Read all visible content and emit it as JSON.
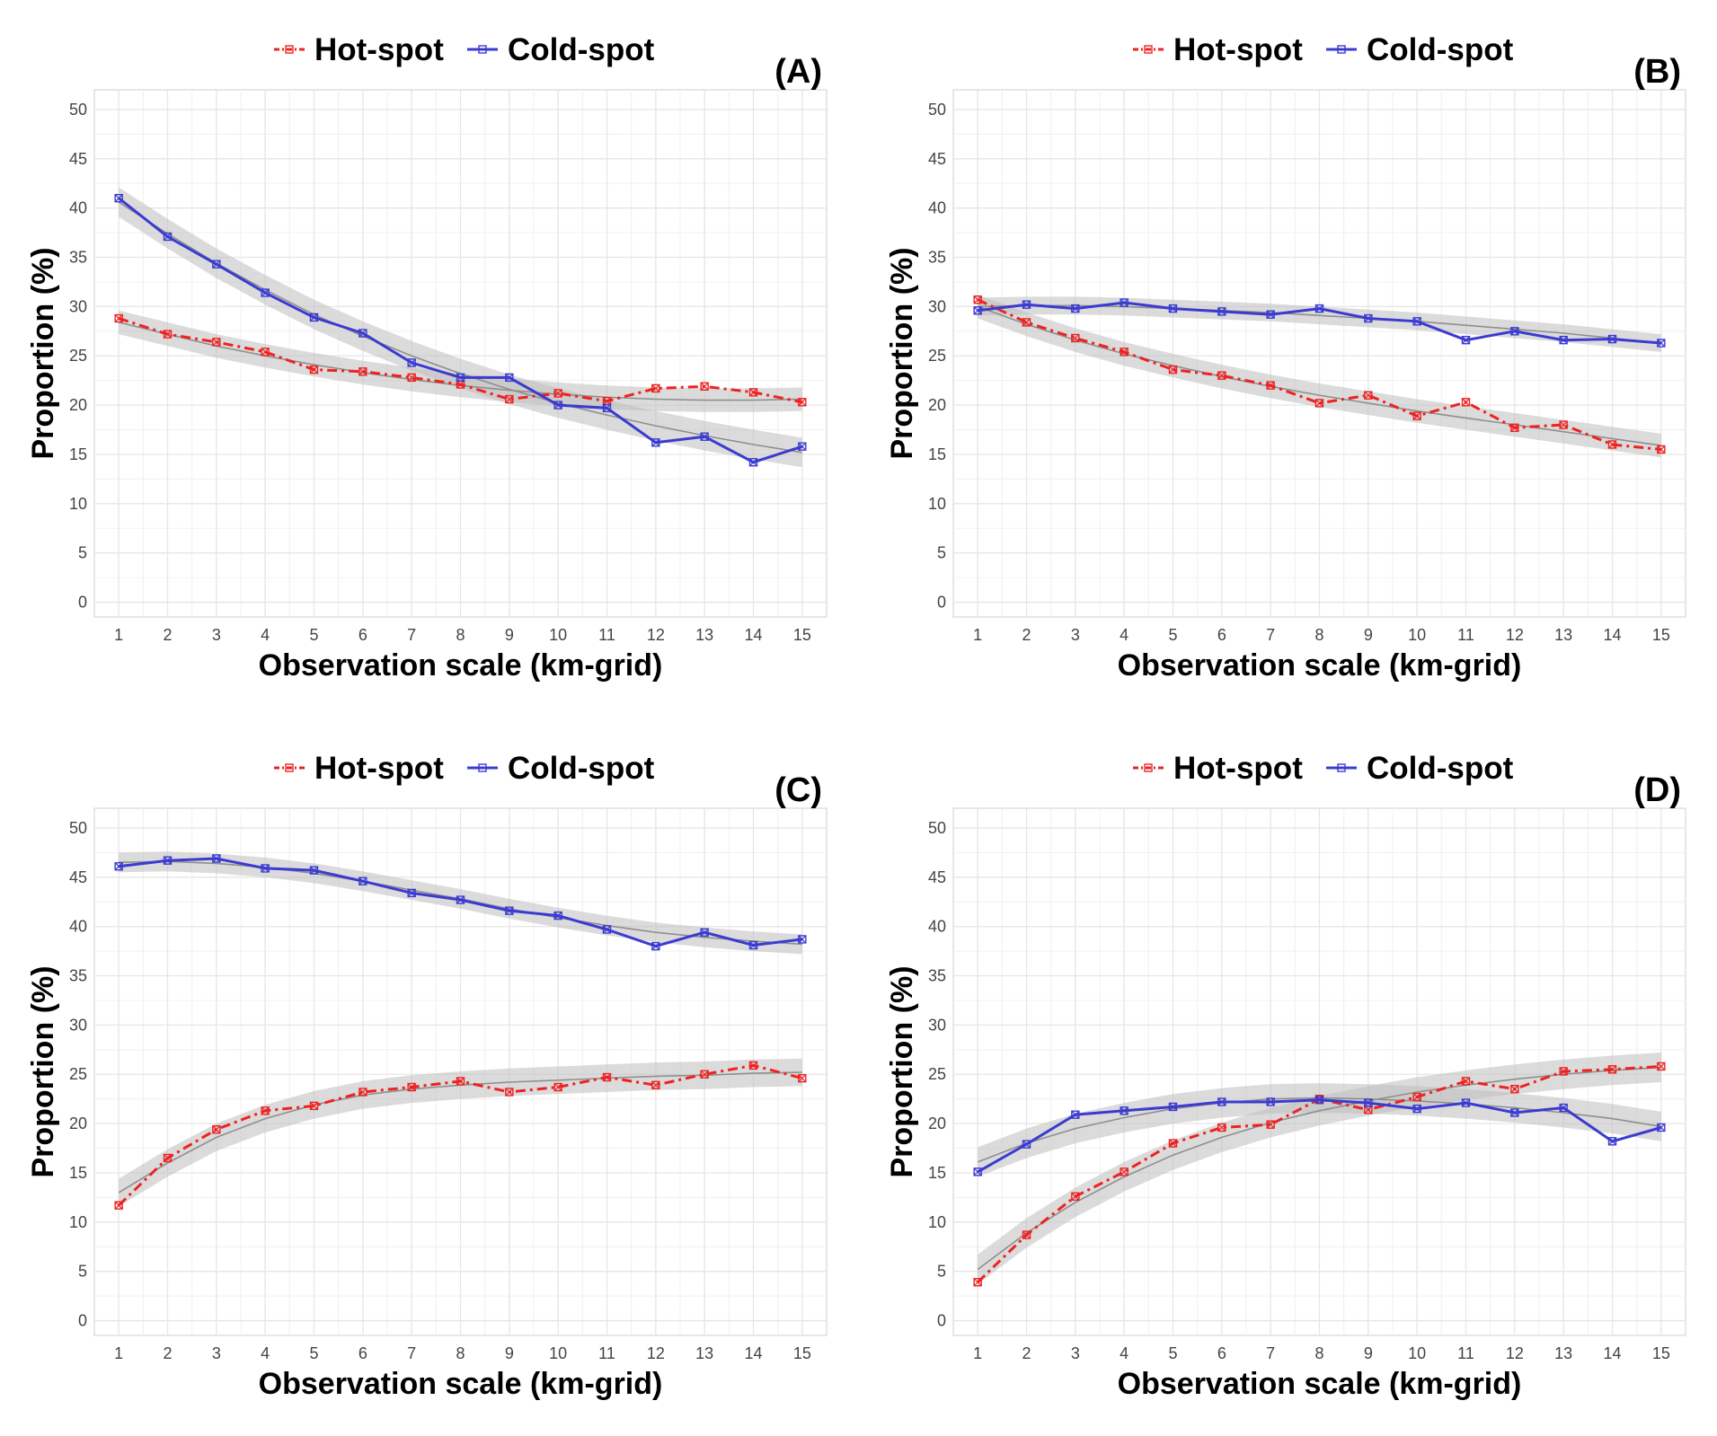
{
  "figure": {
    "legend": {
      "hot_label": "Hot-spot",
      "cold_label": "Cold-spot"
    },
    "colors": {
      "hot": "#ee2222",
      "cold": "#3b3bd1",
      "band": "#bdbdbd",
      "grid": "#e6e6e6",
      "border": "#cfcfcf"
    }
  },
  "chart_data": [
    {
      "type": "line",
      "label": "(A)",
      "xlabel": "Observation scale (km-grid)",
      "ylabel": "Proportion (%)",
      "x": [
        1,
        2,
        3,
        4,
        5,
        6,
        7,
        8,
        9,
        10,
        11,
        12,
        13,
        14,
        15
      ],
      "xlim": [
        0.5,
        15.5
      ],
      "ylim": [
        -1.5,
        52
      ],
      "yticks": [
        0,
        5,
        10,
        15,
        20,
        25,
        30,
        35,
        40,
        45,
        50
      ],
      "legend_position": "top",
      "series": [
        {
          "name": "Hot-spot",
          "style": "dash-dot",
          "values": [
            28.8,
            27.2,
            26.4,
            25.4,
            23.6,
            23.4,
            22.8,
            22.1,
            20.6,
            21.2,
            20.4,
            21.7,
            21.9,
            21.3,
            20.3
          ],
          "fit": [
            28.4,
            27.2,
            26.0,
            25.0,
            24.1,
            23.3,
            22.6,
            22.0,
            21.5,
            21.1,
            20.8,
            20.6,
            20.5,
            20.5,
            20.6
          ],
          "band": 1.2
        },
        {
          "name": "Cold-spot",
          "style": "solid",
          "values": [
            41.0,
            37.1,
            34.3,
            31.4,
            28.9,
            27.3,
            24.3,
            22.8,
            22.8,
            20.0,
            19.7,
            16.2,
            16.8,
            14.2,
            15.8
          ],
          "fit": [
            40.6,
            37.4,
            34.4,
            31.7,
            29.2,
            27.0,
            25.0,
            23.2,
            21.6,
            20.2,
            19.0,
            17.9,
            16.9,
            16.0,
            15.2
          ],
          "band": 1.5
        }
      ]
    },
    {
      "type": "line",
      "label": "(B)",
      "xlabel": "Observation scale (km-grid)",
      "ylabel": "Proportion (%)",
      "x": [
        1,
        2,
        3,
        4,
        5,
        6,
        7,
        8,
        9,
        10,
        11,
        12,
        13,
        14,
        15
      ],
      "xlim": [
        0.5,
        15.5
      ],
      "ylim": [
        -1.5,
        52
      ],
      "yticks": [
        0,
        5,
        10,
        15,
        20,
        25,
        30,
        35,
        40,
        45,
        50
      ],
      "legend_position": "top",
      "series": [
        {
          "name": "Hot-spot",
          "style": "dash-dot",
          "values": [
            30.7,
            28.4,
            26.8,
            25.4,
            23.6,
            23.0,
            22.0,
            20.2,
            21.0,
            18.9,
            20.3,
            17.7,
            18.0,
            16.0,
            15.5
          ],
          "fit": [
            30.0,
            28.2,
            26.6,
            25.2,
            24.0,
            22.9,
            21.9,
            21.0,
            20.2,
            19.4,
            18.7,
            18.0,
            17.3,
            16.6,
            15.9
          ],
          "band": 1.2
        },
        {
          "name": "Cold-spot",
          "style": "solid",
          "values": [
            29.6,
            30.2,
            29.8,
            30.4,
            29.8,
            29.5,
            29.2,
            29.8,
            28.8,
            28.5,
            26.6,
            27.5,
            26.6,
            26.7,
            26.3
          ],
          "fit": [
            30.0,
            30.1,
            30.1,
            30.0,
            29.8,
            29.6,
            29.4,
            29.1,
            28.8,
            28.5,
            28.1,
            27.7,
            27.3,
            26.8,
            26.3
          ],
          "band": 0.9
        }
      ]
    },
    {
      "type": "line",
      "label": "(C)",
      "xlabel": "Observation scale (km-grid)",
      "ylabel": "Proportion (%)",
      "x": [
        1,
        2,
        3,
        4,
        5,
        6,
        7,
        8,
        9,
        10,
        11,
        12,
        13,
        14,
        15
      ],
      "xlim": [
        0.5,
        15.5
      ],
      "ylim": [
        -1.5,
        52
      ],
      "yticks": [
        0,
        5,
        10,
        15,
        20,
        25,
        30,
        35,
        40,
        45,
        50
      ],
      "legend_position": "top",
      "series": [
        {
          "name": "Hot-spot",
          "style": "dash-dot",
          "values": [
            11.7,
            16.5,
            19.4,
            21.3,
            21.8,
            23.2,
            23.7,
            24.3,
            23.2,
            23.7,
            24.7,
            23.9,
            25.0,
            25.9,
            24.6
          ],
          "fit": [
            13.0,
            16.0,
            18.6,
            20.5,
            21.9,
            22.9,
            23.5,
            23.9,
            24.2,
            24.4,
            24.6,
            24.8,
            24.9,
            25.1,
            25.2
          ],
          "band": 1.4
        },
        {
          "name": "Cold-spot",
          "style": "solid",
          "values": [
            46.1,
            46.7,
            46.9,
            45.9,
            45.7,
            44.6,
            43.4,
            42.7,
            41.6,
            41.1,
            39.7,
            38.0,
            39.4,
            38.1,
            38.7
          ],
          "fit": [
            46.5,
            46.6,
            46.4,
            46.0,
            45.4,
            44.6,
            43.7,
            42.8,
            41.8,
            40.9,
            40.1,
            39.4,
            38.9,
            38.5,
            38.2
          ],
          "band": 1.0
        }
      ]
    },
    {
      "type": "line",
      "label": "(D)",
      "xlabel": "Observation scale (km-grid)",
      "ylabel": "Proportion (%)",
      "x": [
        1,
        2,
        3,
        4,
        5,
        6,
        7,
        8,
        9,
        10,
        11,
        12,
        13,
        14,
        15
      ],
      "xlim": [
        0.5,
        15.5
      ],
      "ylim": [
        -1.5,
        52
      ],
      "yticks": [
        0,
        5,
        10,
        15,
        20,
        25,
        30,
        35,
        40,
        45,
        50
      ],
      "legend_position": "top",
      "series": [
        {
          "name": "Hot-spot",
          "style": "dash-dot",
          "values": [
            3.9,
            8.7,
            12.6,
            15.1,
            18.0,
            19.6,
            19.9,
            22.5,
            21.4,
            22.7,
            24.3,
            23.5,
            25.3,
            25.5,
            25.8
          ],
          "fit": [
            5.2,
            8.9,
            12.0,
            14.6,
            16.8,
            18.6,
            20.1,
            21.3,
            22.3,
            23.2,
            23.9,
            24.5,
            25.0,
            25.4,
            25.7
          ],
          "band": 1.5
        },
        {
          "name": "Cold-spot",
          "style": "solid",
          "values": [
            15.1,
            17.9,
            20.9,
            21.3,
            21.7,
            22.2,
            22.2,
            22.4,
            22.1,
            21.5,
            22.1,
            21.1,
            21.6,
            18.2,
            19.6
          ],
          "fit": [
            16.1,
            18.0,
            19.5,
            20.6,
            21.5,
            22.1,
            22.5,
            22.6,
            22.5,
            22.3,
            22.0,
            21.6,
            21.1,
            20.5,
            19.7
          ],
          "band": 1.5
        }
      ]
    }
  ]
}
